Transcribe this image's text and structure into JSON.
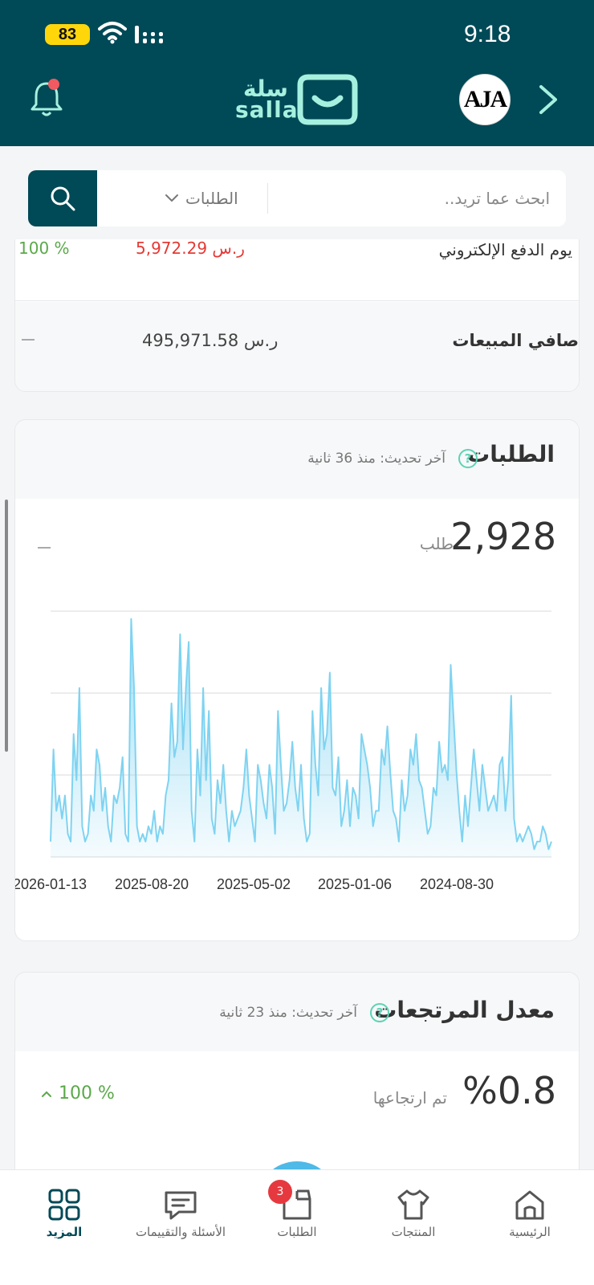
{
  "status_bar": {
    "time": "9:18",
    "battery": "83"
  },
  "header": {
    "logo_ar": "سلة",
    "logo_en": "salla",
    "avatar_text": "AJA"
  },
  "search": {
    "placeholder": "ابحث عما تريد..",
    "category": "الطلبات"
  },
  "summary_card": {
    "row1_label": "يوم الدفع الإلكتروني",
    "row1_value": "5,972.29 ر.س",
    "row1_change": "100 %",
    "row2_label": "صافي المبيعات",
    "row2_value": "495,971.58 ر.س"
  },
  "orders_card": {
    "title": "الطلبات",
    "updated": "آخر تحديث: منذ 36 ثانية",
    "help_icon": "?",
    "total": "2,928",
    "unit": "طلب"
  },
  "returns_card": {
    "title": "معدل المرتجعات",
    "updated": "آخر تحديث: منذ 23 ثانية",
    "help_icon": "?",
    "value": "%0.8",
    "unit": "تم ارتجاعها",
    "change": "100 %"
  },
  "bottom_nav": {
    "items": [
      {
        "label": "الرئيسية",
        "icon": "home-icon"
      },
      {
        "label": "المنتجات",
        "icon": "shirt-icon"
      },
      {
        "label": "الطلبات",
        "icon": "box-icon",
        "badge": "3"
      },
      {
        "label": "الأسئلة والتقييمات",
        "icon": "comment-icon"
      },
      {
        "label": "المزيد",
        "icon": "grid-icon",
        "active": true
      }
    ]
  },
  "colors": {
    "primary": "#004956",
    "accent": "#a6f0df",
    "chart": "#7fd3f1",
    "up": "#5aa94a",
    "down": "#e53935"
  },
  "chart_data": {
    "type": "area",
    "x_ticks": [
      "2026-01-13",
      "2025-08-20",
      "2025-05-02",
      "2025-01-06",
      "2024-08-30"
    ],
    "x_order": "newest-first",
    "y_gridlines": 4,
    "values": [
      2,
      14,
      6,
      8,
      5,
      8,
      3,
      2,
      16,
      10,
      22,
      4,
      2,
      3,
      8,
      6,
      14,
      12,
      6,
      9,
      4,
      2,
      8,
      7,
      9,
      13,
      3,
      2,
      31,
      22,
      4,
      2,
      3,
      2,
      4,
      3,
      6,
      2,
      4,
      3,
      8,
      10,
      20,
      13,
      15,
      29,
      14,
      22,
      28,
      6,
      2,
      14,
      8,
      22,
      10,
      19,
      5,
      3,
      10,
      7,
      12,
      6,
      2,
      6,
      4,
      5,
      6,
      9,
      14,
      8,
      5,
      2,
      12,
      10,
      7,
      5,
      12,
      9,
      3,
      19,
      12,
      6,
      7,
      10,
      15,
      9,
      6,
      12,
      5,
      2,
      3,
      19,
      12,
      8,
      22,
      14,
      16,
      24,
      9,
      8,
      13,
      4,
      6,
      10,
      4,
      9,
      8,
      5,
      16,
      14,
      12,
      9,
      4,
      6,
      6,
      14,
      12,
      17,
      11,
      6,
      5,
      2,
      10,
      6,
      8,
      14,
      12,
      16,
      10,
      9,
      6,
      3,
      4,
      9,
      8,
      15,
      11,
      12,
      10,
      25,
      18,
      11,
      6,
      2,
      8,
      4,
      9,
      14,
      10,
      6,
      12,
      9,
      6,
      7,
      8,
      6,
      12,
      13,
      6,
      10,
      21,
      5,
      2,
      3,
      2,
      3,
      4,
      3,
      1,
      2,
      2,
      4,
      3,
      1,
      2
    ]
  }
}
